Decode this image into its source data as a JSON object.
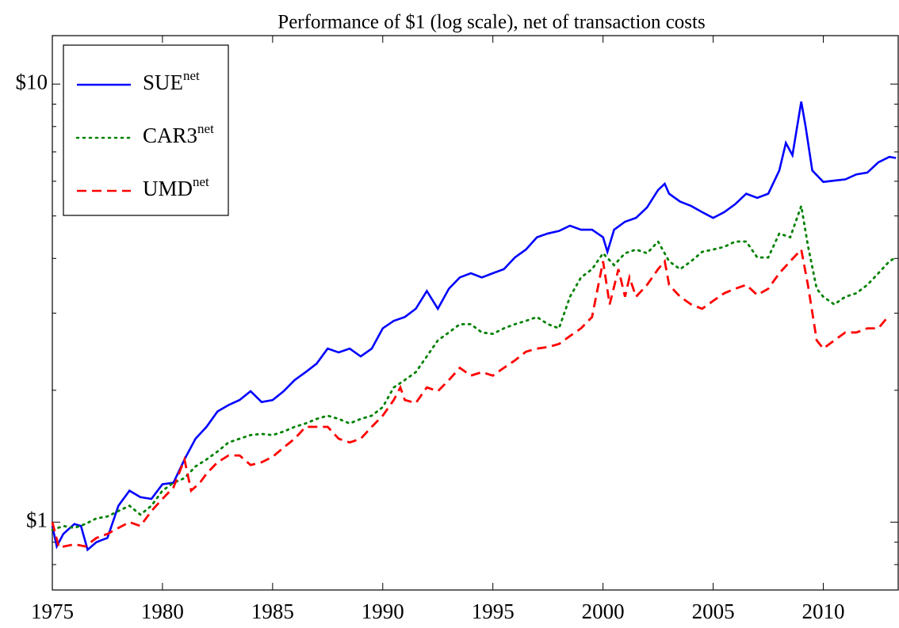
{
  "chart_data": {
    "type": "line",
    "title": "Performance of $1 (log scale), net of transaction costs",
    "log_y": true,
    "xlim": [
      1975,
      2013.4
    ],
    "xticks": [
      1975,
      1980,
      1985,
      1990,
      1995,
      2000,
      2005,
      2010
    ],
    "ylim": [
      0.7,
      12.9
    ],
    "yticks": [
      {
        "value": 1,
        "label": "$1"
      },
      {
        "value": 10,
        "label": "$10"
      }
    ],
    "yticks_minor": [
      0.8,
      0.9,
      2,
      3,
      4,
      5,
      6,
      7,
      8,
      9
    ],
    "legend": "upper-left",
    "series": [
      {
        "name": "SUE",
        "name_sup": "net",
        "color": "#0000ff",
        "line_style": "solid",
        "x": [
          1975,
          1975.2,
          1975.5,
          1976,
          1976.3,
          1976.6,
          1977,
          1977.5,
          1978,
          1978.5,
          1979,
          1979.5,
          1980,
          1980.5,
          1981,
          1981.5,
          1982,
          1982.5,
          1983,
          1983.5,
          1984,
          1984.5,
          1985,
          1985.5,
          1986,
          1986.5,
          1987,
          1987.5,
          1988,
          1988.5,
          1989,
          1989.5,
          1990,
          1990.5,
          1991,
          1991.5,
          1992,
          1992.5,
          1993,
          1993.5,
          1994,
          1994.5,
          1995,
          1995.5,
          1996,
          1996.5,
          1997,
          1997.5,
          1998,
          1998.5,
          1999,
          1999.5,
          2000,
          2000.2,
          2000.5,
          2001,
          2001.5,
          2002,
          2002.5,
          2002.8,
          2003,
          2003.5,
          2004,
          2004.5,
          2005,
          2005.5,
          2006,
          2006.5,
          2007,
          2007.5,
          2008,
          2008.3,
          2008.6,
          2009,
          2009.2,
          2009.5,
          2010,
          2010.5,
          2011,
          2011.5,
          2012,
          2012.5,
          2013,
          2013.3
        ],
        "values": [
          0.98,
          0.88,
          0.94,
          0.99,
          0.98,
          0.865,
          0.9,
          0.92,
          1.09,
          1.18,
          1.14,
          1.13,
          1.22,
          1.23,
          1.39,
          1.55,
          1.65,
          1.79,
          1.85,
          1.9,
          1.99,
          1.88,
          1.9,
          1.99,
          2.11,
          2.2,
          2.3,
          2.49,
          2.44,
          2.49,
          2.39,
          2.49,
          2.77,
          2.88,
          2.94,
          3.07,
          3.37,
          3.07,
          3.41,
          3.62,
          3.7,
          3.62,
          3.7,
          3.78,
          4.02,
          4.19,
          4.47,
          4.56,
          4.62,
          4.75,
          4.65,
          4.65,
          4.47,
          4.14,
          4.65,
          4.85,
          4.95,
          5.23,
          5.73,
          5.92,
          5.62,
          5.39,
          5.27,
          5.1,
          4.95,
          5.1,
          5.32,
          5.62,
          5.5,
          5.62,
          6.35,
          7.34,
          6.88,
          9.12,
          7.98,
          6.35,
          5.98,
          6.02,
          6.06,
          6.22,
          6.28,
          6.63,
          6.82,
          6.78
        ]
      },
      {
        "name": "CAR3",
        "name_sup": "net",
        "color": "#008000",
        "line_style": "dotted",
        "x": [
          1975,
          1975.5,
          1976,
          1976.5,
          1977,
          1977.5,
          1978,
          1978.5,
          1979,
          1979.5,
          1980,
          1980.5,
          1981,
          1981.5,
          1982,
          1982.5,
          1983,
          1983.5,
          1984,
          1984.5,
          1985,
          1985.5,
          1986,
          1986.5,
          1987,
          1987.5,
          1988,
          1988.5,
          1989,
          1989.5,
          1990,
          1990.5,
          1991,
          1991.5,
          1992,
          1992.5,
          1993,
          1993.5,
          1994,
          1994.5,
          1995,
          1995.5,
          1996,
          1996.5,
          1997,
          1997.5,
          1998,
          1998.5,
          1999,
          1999.5,
          2000,
          2000.5,
          2001,
          2001.5,
          2002,
          2002.5,
          2003,
          2003.5,
          2004,
          2004.5,
          2005,
          2005.5,
          2006,
          2006.5,
          2007,
          2007.5,
          2008,
          2008.5,
          2009,
          2009.3,
          2009.7,
          2010,
          2010.5,
          2011,
          2011.5,
          2012,
          2012.5,
          2013,
          2013.3
        ],
        "values": [
          0.96,
          0.98,
          0.97,
          0.99,
          1.02,
          1.03,
          1.06,
          1.09,
          1.04,
          1.09,
          1.18,
          1.23,
          1.26,
          1.34,
          1.39,
          1.45,
          1.52,
          1.55,
          1.58,
          1.59,
          1.58,
          1.61,
          1.65,
          1.68,
          1.72,
          1.75,
          1.72,
          1.68,
          1.72,
          1.75,
          1.83,
          2.03,
          2.11,
          2.2,
          2.39,
          2.6,
          2.71,
          2.83,
          2.83,
          2.71,
          2.69,
          2.77,
          2.83,
          2.88,
          2.94,
          2.83,
          2.77,
          3.27,
          3.62,
          3.78,
          4.11,
          3.86,
          4.11,
          4.19,
          4.11,
          4.37,
          3.94,
          3.78,
          3.94,
          4.14,
          4.19,
          4.25,
          4.37,
          4.37,
          4.02,
          4.02,
          4.56,
          4.47,
          5.27,
          4.28,
          3.41,
          3.27,
          3.14,
          3.27,
          3.33,
          3.48,
          3.7,
          3.94,
          4.02
        ]
      },
      {
        "name": "UMD",
        "name_sup": "net",
        "color": "#ff0000",
        "line_style": "dashed",
        "x": [
          1975,
          1975.3,
          1976,
          1976.5,
          1977,
          1977.5,
          1978,
          1978.5,
          1979,
          1979.5,
          1980,
          1980.5,
          1981,
          1981.3,
          1981.7,
          1982,
          1982.5,
          1983,
          1983.5,
          1984,
          1984.5,
          1985,
          1985.5,
          1986,
          1986.5,
          1987,
          1987.5,
          1988,
          1988.5,
          1989,
          1989.5,
          1990,
          1990.5,
          1990.8,
          1991,
          1991.5,
          1992,
          1992.5,
          1993,
          1993.5,
          1994,
          1994.5,
          1995,
          1995.5,
          1996,
          1996.5,
          1997,
          1997.5,
          1998,
          1998.5,
          1999,
          1999.5,
          2000,
          2000.3,
          2000.7,
          2001,
          2001.2,
          2001.5,
          2002,
          2002.5,
          2002.8,
          2003,
          2003.5,
          2004,
          2004.5,
          2005,
          2005.5,
          2006,
          2006.5,
          2007,
          2007.5,
          2008,
          2008.5,
          2009,
          2009.3,
          2009.7,
          2010,
          2010.5,
          2011,
          2011.5,
          2012,
          2012.5,
          2013
        ],
        "values": [
          1.0,
          0.875,
          0.89,
          0.88,
          0.92,
          0.94,
          0.97,
          1.0,
          0.98,
          1.06,
          1.13,
          1.2,
          1.39,
          1.18,
          1.23,
          1.29,
          1.37,
          1.42,
          1.42,
          1.35,
          1.37,
          1.41,
          1.48,
          1.55,
          1.65,
          1.65,
          1.65,
          1.55,
          1.52,
          1.55,
          1.65,
          1.75,
          1.9,
          2.03,
          1.9,
          1.87,
          2.03,
          1.99,
          2.11,
          2.25,
          2.16,
          2.2,
          2.16,
          2.25,
          2.34,
          2.45,
          2.49,
          2.51,
          2.55,
          2.66,
          2.77,
          2.94,
          3.94,
          3.14,
          3.78,
          3.27,
          3.62,
          3.27,
          3.48,
          3.78,
          3.94,
          3.48,
          3.27,
          3.14,
          3.07,
          3.2,
          3.33,
          3.41,
          3.48,
          3.3,
          3.41,
          3.7,
          3.94,
          4.19,
          3.48,
          2.6,
          2.49,
          2.6,
          2.71,
          2.71,
          2.77,
          2.77,
          2.97
        ]
      }
    ]
  }
}
